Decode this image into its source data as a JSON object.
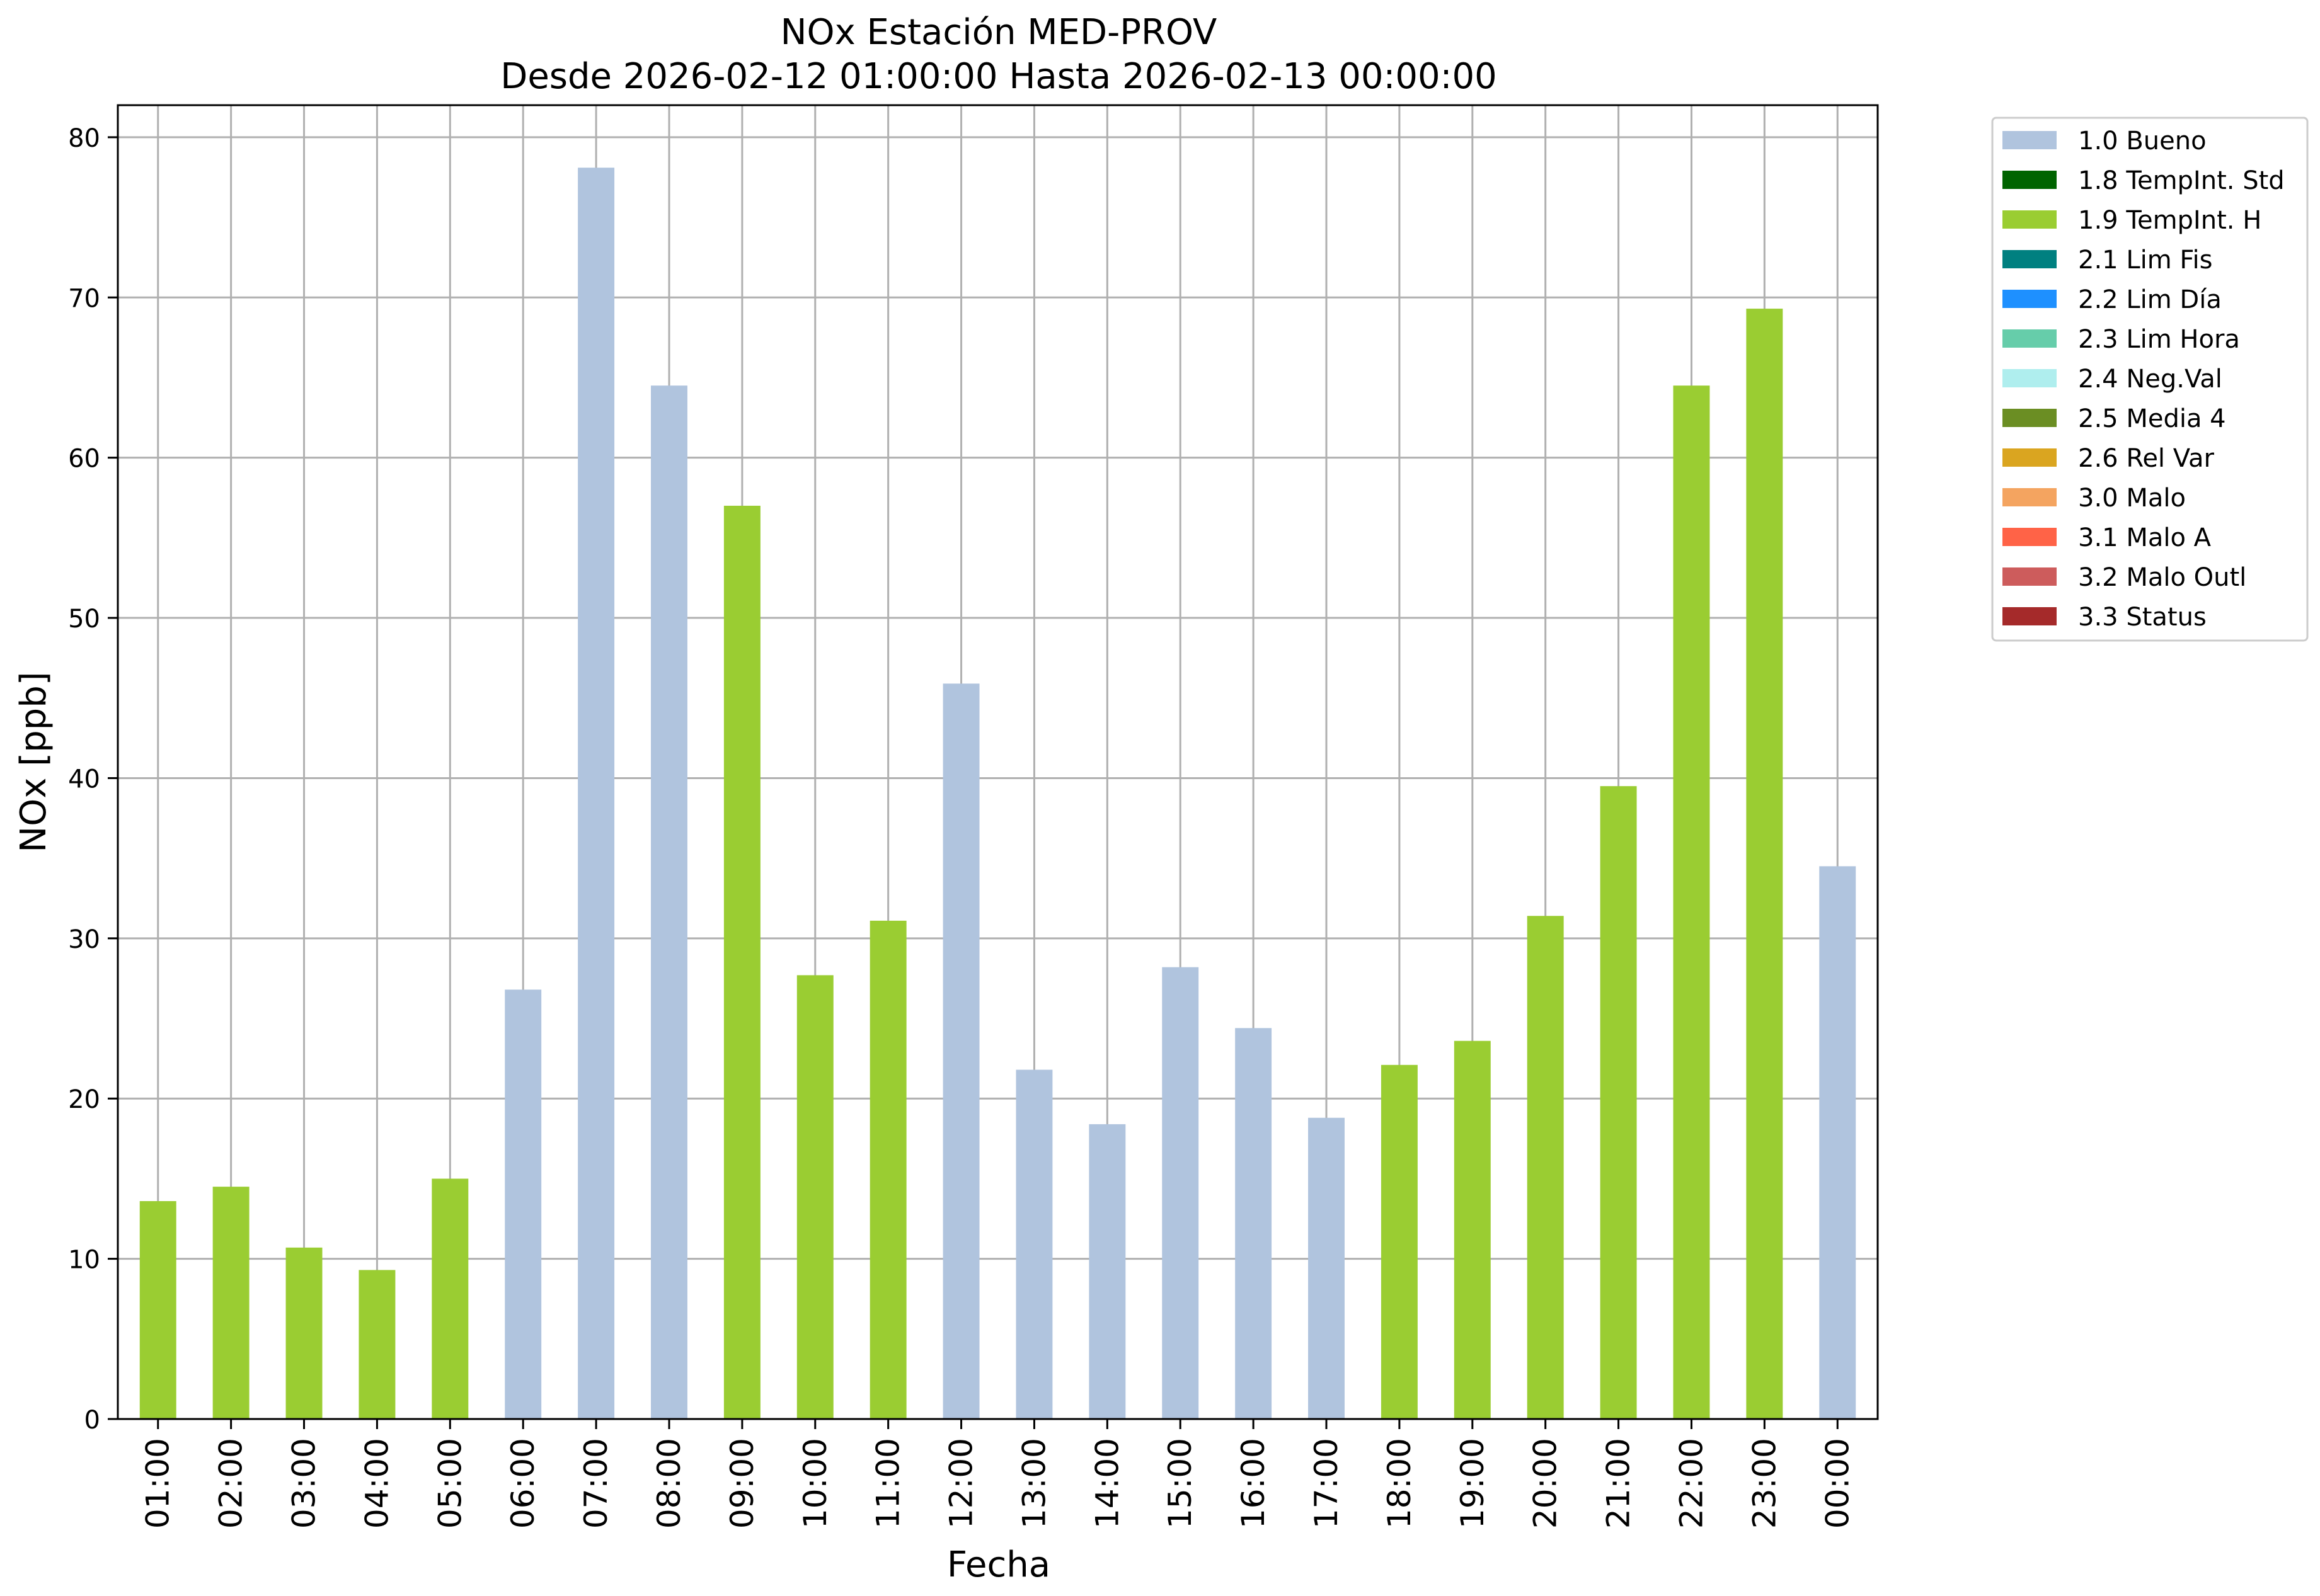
{
  "chart_data": {
    "type": "bar",
    "title": "NOx Estación MED-PROV",
    "subtitle": "Desde 2026-02-12 01:00:00 Hasta 2026-02-13 00:00:00",
    "xlabel": "Fecha",
    "ylabel": "NOx [ppb]",
    "ylim": [
      0,
      82
    ],
    "yticks": [
      0,
      10,
      20,
      30,
      40,
      50,
      60,
      70,
      80
    ],
    "grid": true,
    "legend_position": "outside-right",
    "categories": [
      "01:00",
      "02:00",
      "03:00",
      "04:00",
      "05:00",
      "06:00",
      "07:00",
      "08:00",
      "09:00",
      "10:00",
      "11:00",
      "12:00",
      "13:00",
      "14:00",
      "15:00",
      "16:00",
      "17:00",
      "18:00",
      "19:00",
      "20:00",
      "21:00",
      "22:00",
      "23:00",
      "00:00"
    ],
    "values": [
      13.6,
      14.5,
      10.7,
      9.3,
      15.0,
      26.8,
      78.1,
      64.5,
      57.0,
      27.7,
      31.1,
      45.9,
      21.8,
      18.4,
      28.2,
      24.4,
      18.8,
      22.1,
      23.6,
      31.4,
      39.5,
      64.5,
      69.3,
      34.5
    ],
    "flags": [
      "1.9 TempInt. H",
      "1.9 TempInt. H",
      "1.9 TempInt. H",
      "1.9 TempInt. H",
      "1.9 TempInt. H",
      "1.0 Bueno",
      "1.0 Bueno",
      "1.0 Bueno",
      "1.9 TempInt. H",
      "1.9 TempInt. H",
      "1.9 TempInt. H",
      "1.0 Bueno",
      "1.0 Bueno",
      "1.0 Bueno",
      "1.0 Bueno",
      "1.0 Bueno",
      "1.0 Bueno",
      "1.9 TempInt. H",
      "1.9 TempInt. H",
      "1.9 TempInt. H",
      "1.9 TempInt. H",
      "1.9 TempInt. H",
      "1.9 TempInt. H",
      "1.0 Bueno"
    ],
    "legend": [
      {
        "label": "1.0 Bueno",
        "color": "#b0c4de"
      },
      {
        "label": "1.8 TempInt. Std",
        "color": "#006400"
      },
      {
        "label": "1.9 TempInt. H",
        "color": "#9acd32"
      },
      {
        "label": "2.1 Lim Fis",
        "color": "#008080"
      },
      {
        "label": "2.2 Lim Día",
        "color": "#1e90ff"
      },
      {
        "label": "2.3 Lim Hora",
        "color": "#66cdaa"
      },
      {
        "label": "2.4 Neg.Val",
        "color": "#afeeee"
      },
      {
        "label": "2.5 Media 4",
        "color": "#6b8e23"
      },
      {
        "label": "2.6 Rel Var",
        "color": "#daa520"
      },
      {
        "label": "3.0 Malo",
        "color": "#f4a460"
      },
      {
        "label": "3.1 Malo A",
        "color": "#ff6347"
      },
      {
        "label": "3.2 Malo Outl",
        "color": "#cd5c5c"
      },
      {
        "label": "3.3 Status",
        "color": "#a52a2a"
      }
    ]
  }
}
